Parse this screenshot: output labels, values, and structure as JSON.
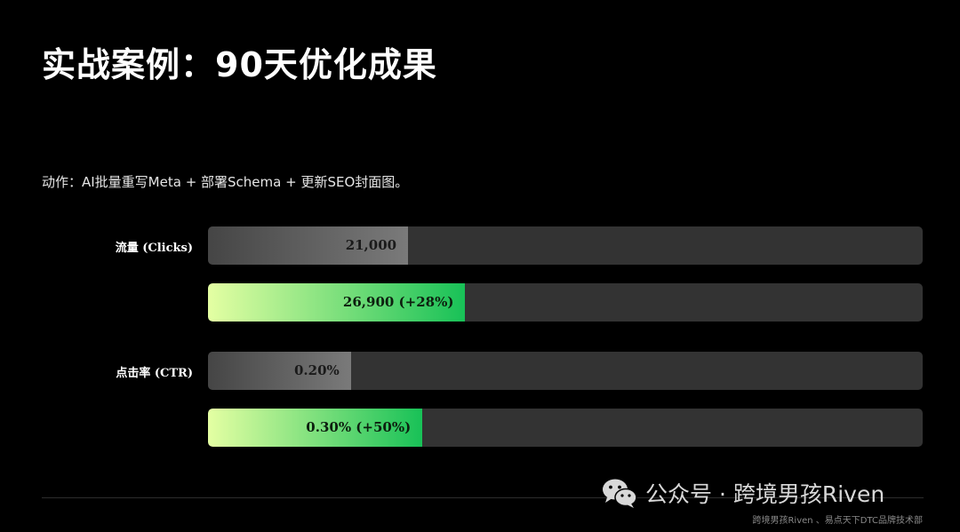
{
  "title": "实战案例：90天优化成果",
  "subtitle": "动作：AI批量重写Meta + 部署Schema + 更新SEO封面图。",
  "chart_data": {
    "type": "bar",
    "orientation": "horizontal",
    "scale_max": 66000,
    "groups": [
      {
        "label": "流量 (Clicks)",
        "bars": [
          {
            "label": "21,000",
            "value": 21000,
            "fraction": 0.28
          },
          {
            "label": "26,900 (+28%)",
            "value": 26900,
            "fraction": 0.36
          }
        ]
      },
      {
        "label": "点击率 (CTR)",
        "bars": [
          {
            "label": "0.20%",
            "value": 0.2,
            "fraction": 0.2
          },
          {
            "label": "0.30% (+50%)",
            "value": 0.3,
            "fraction": 0.3
          }
        ]
      }
    ]
  },
  "watermark": {
    "text": "公众号 · 跨境男孩Riven",
    "icon": "wechat-icon"
  },
  "footer": "跨境男孩Riven 、易点天下DTC品牌技术部",
  "colors": {
    "background": "#000000",
    "track": "#333333",
    "before_bar_start": "#454545",
    "before_bar_end": "#7a7a7a",
    "after_bar_start": "#e4ffa3",
    "after_bar_end": "#18c157"
  }
}
